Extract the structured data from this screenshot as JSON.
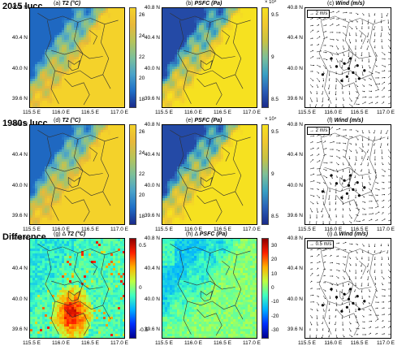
{
  "rows": [
    {
      "label": "2015 lucc"
    },
    {
      "label": "1980s lucc"
    },
    {
      "label": "Difference"
    }
  ],
  "panels": [
    {
      "id": "a",
      "letter": "(a)",
      "var": "T2 (°C)",
      "type": "t2",
      "cbar": {
        "ticks": [
          "26",
          "24",
          "22",
          "20",
          "18"
        ],
        "exponent": ""
      }
    },
    {
      "id": "b",
      "letter": "(b)",
      "var": "PSFC (Pa)",
      "type": "psfc",
      "cbar": {
        "ticks": [
          "9.5",
          "9",
          "8.5"
        ],
        "exponent": "× 10⁴"
      }
    },
    {
      "id": "c",
      "letter": "(c)",
      "var": "Wind (m/s)",
      "type": "wind",
      "ref": "2 m/s"
    },
    {
      "id": "d",
      "letter": "(d)",
      "var": "T2 (°C)",
      "type": "t2",
      "cbar": {
        "ticks": [
          "26",
          "24",
          "22",
          "20",
          "18"
        ],
        "exponent": ""
      }
    },
    {
      "id": "e",
      "letter": "(e)",
      "var": "PSFC (Pa)",
      "type": "psfc",
      "cbar": {
        "ticks": [
          "9.5",
          "9",
          "8.5"
        ],
        "exponent": "× 10⁴"
      }
    },
    {
      "id": "f",
      "letter": "(f)",
      "var": "Wind (m/s)",
      "type": "wind",
      "ref": "2 m/s"
    },
    {
      "id": "g",
      "letter": "(g) Δ",
      "var": "T2 (°C)",
      "type": "dt2",
      "cbar": {
        "ticks": [
          "0.5",
          "0",
          "-0.5"
        ],
        "exponent": ""
      }
    },
    {
      "id": "h",
      "letter": "(h) Δ",
      "var": "PSFC (Pa)",
      "type": "dpsfc",
      "cbar": {
        "ticks": [
          "30",
          "20",
          "10",
          "0",
          "-10",
          "-20",
          "-30"
        ],
        "exponent": ""
      }
    },
    {
      "id": "i",
      "letter": "(i) Δ",
      "var": "Wind (m/s)",
      "type": "wind",
      "ref": "0.5 m/s"
    }
  ],
  "axes": {
    "lat_ticks": [
      "40.8 N",
      "40.4 N",
      "40.0 N",
      "39.6 N"
    ],
    "lon_ticks": [
      "115.5 E",
      "116.0 E",
      "116.5 E",
      "117.0 E"
    ]
  },
  "colors": {
    "t2_scale": [
      "#1a2a8a",
      "#1f6fc7",
      "#4aa3c9",
      "#7cc09a",
      "#b6c45a",
      "#e8b83a",
      "#f4d22a"
    ],
    "psfc_scale": [
      "#1a2a8a",
      "#2a5fb8",
      "#38a0c4",
      "#7cc09a",
      "#c8c244",
      "#f0c830",
      "#f6e120"
    ],
    "diff_scale": [
      "#00008f",
      "#0030ff",
      "#00b0ff",
      "#40ffbf",
      "#bfff40",
      "#ffb000",
      "#ff2000",
      "#8f0000"
    ],
    "border": "#303030"
  }
}
